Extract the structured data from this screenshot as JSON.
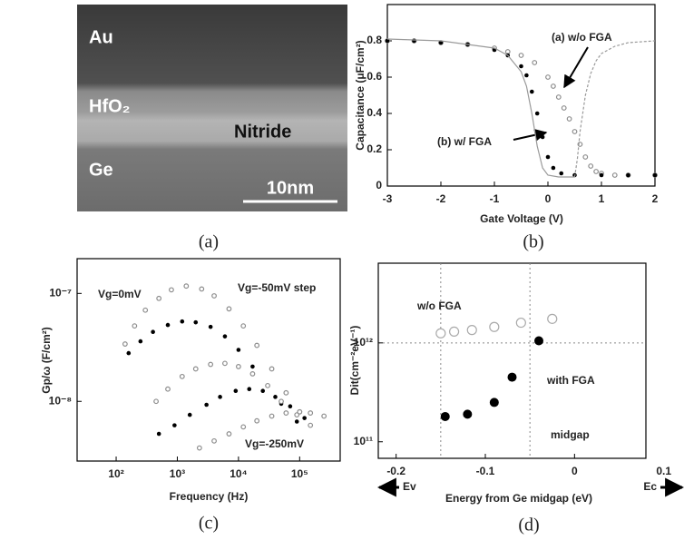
{
  "image": {
    "labels": [
      "Au",
      "HfO₂",
      "Nitride",
      "Ge"
    ],
    "scale_bar": "10nm"
  },
  "captions": [
    "(a)",
    "(b)",
    "(c)",
    "(d)"
  ],
  "chart_data": [
    {
      "type": "line",
      "xlabel": "Gate Voltage (V)",
      "ylabel": "Capacitance  (μF/cm²)",
      "xlim": [
        -3,
        2
      ],
      "xticks": [
        -3,
        -2,
        -1,
        0,
        1,
        2
      ],
      "ylim": [
        0,
        1
      ],
      "yticks": [
        0,
        0.2,
        0.4,
        0.6,
        0.8
      ],
      "annotations": [
        "(a) w/o FGA",
        "(b) w/ FGA"
      ],
      "series": [
        {
          "color": "#8c8c8c",
          "marker": "open",
          "x": [
            -3,
            -2.5,
            -2,
            -1.5,
            -1,
            -0.75,
            -0.5,
            -0.25,
            0,
            0.1,
            0.2,
            0.3,
            0.4,
            0.5,
            0.6,
            0.7,
            0.8,
            0.9,
            1,
            1.25,
            1.5,
            2
          ],
          "values": [
            0.8,
            0.8,
            0.79,
            0.78,
            0.76,
            0.74,
            0.72,
            0.68,
            0.6,
            0.55,
            0.49,
            0.43,
            0.37,
            0.3,
            0.23,
            0.16,
            0.11,
            0.08,
            0.07,
            0.06,
            0.06,
            0.06
          ]
        },
        {
          "color": "#000000",
          "marker": "dot",
          "x": [
            -3,
            -2.5,
            -2,
            -1.5,
            -1,
            -0.75,
            -0.5,
            -0.4,
            -0.3,
            -0.2,
            -0.1,
            0,
            0.1,
            0.25,
            0.5,
            1,
            1.5,
            2
          ],
          "values": [
            0.8,
            0.8,
            0.79,
            0.78,
            0.75,
            0.72,
            0.66,
            0.61,
            0.52,
            0.4,
            0.27,
            0.16,
            0.1,
            0.07,
            0.06,
            0.06,
            0.06,
            0.06
          ]
        },
        {
          "color": "#9a9a9a",
          "marker": "none",
          "x": [
            -3,
            -2,
            -1,
            -0.75,
            -0.5,
            -0.4,
            -0.3,
            -0.2,
            -0.1,
            0,
            0.2,
            0.5
          ],
          "values": [
            0.81,
            0.8,
            0.76,
            0.72,
            0.63,
            0.55,
            0.4,
            0.22,
            0.1,
            0.06,
            0.05,
            0.05
          ]
        },
        {
          "color": "#9a9a9a",
          "marker": "none",
          "line_style": "dashed",
          "x": [
            0.5,
            0.55,
            0.6,
            0.7,
            0.8,
            0.9,
            1,
            1.25,
            1.5,
            2
          ],
          "values": [
            0.05,
            0.15,
            0.3,
            0.5,
            0.62,
            0.69,
            0.73,
            0.77,
            0.79,
            0.8
          ]
        }
      ]
    },
    {
      "type": "line",
      "xlabel": "Frequency (Hz)",
      "ylabel": "Gp/ω (F/cm²)",
      "xscale": "log",
      "yscale": "log",
      "xlim": [
        23,
        460000
      ],
      "xticks": [
        {
          "value": 100,
          "label": "10²"
        },
        {
          "value": 1000,
          "label": "10³"
        },
        {
          "value": 10000,
          "label": "10⁴"
        },
        {
          "value": 100000,
          "label": "10⁵"
        }
      ],
      "ylim": [
        2.8e-09,
        2.1e-07
      ],
      "yticks": [
        {
          "value": 1e-08,
          "label": "10⁻⁸"
        },
        {
          "value": 1e-07,
          "label": "10⁻⁷"
        }
      ],
      "annotations": [
        "Vg=0mV",
        "Vg=-50mV step",
        "Vg=-250mV"
      ],
      "series": [
        {
          "color": "#8c8c8c",
          "marker": "open",
          "x": [
            140,
            200,
            300,
            500,
            800,
            1400,
            2500,
            4000,
            7000,
            12000,
            20000,
            35000,
            60000,
            100000
          ],
          "values": [
            3.4e-08,
            5e-08,
            7e-08,
            9e-08,
            1.08e-07,
            1.17e-07,
            1.1e-07,
            9.5e-08,
            7.2e-08,
            5e-08,
            3.3e-08,
            2e-08,
            1.2e-08,
            8e-09
          ]
        },
        {
          "color": "#000000",
          "marker": "dot",
          "x": [
            160,
            250,
            400,
            700,
            1200,
            2000,
            3500,
            6000,
            10000,
            17000,
            30000,
            50000,
            90000
          ],
          "values": [
            2.8e-08,
            3.6e-08,
            4.4e-08,
            5.1e-08,
            5.5e-08,
            5.4e-08,
            4.9e-08,
            4e-08,
            3e-08,
            2.1e-08,
            1.4e-08,
            9.5e-09,
            6.5e-09
          ]
        },
        {
          "color": "#8c8c8c",
          "marker": "open",
          "x": [
            450,
            700,
            1200,
            2000,
            3500,
            6000,
            10000,
            17000,
            30000,
            50000,
            90000,
            150000
          ],
          "values": [
            1e-08,
            1.3e-08,
            1.7e-08,
            2e-08,
            2.2e-08,
            2.25e-08,
            2.1e-08,
            1.8e-08,
            1.4e-08,
            1e-08,
            7.5e-09,
            6e-09
          ]
        },
        {
          "color": "#000000",
          "marker": "dot",
          "x": [
            500,
            900,
            1600,
            3000,
            5000,
            9000,
            15000,
            25000,
            40000,
            70000,
            120000
          ],
          "values": [
            5e-09,
            6e-09,
            7.5e-09,
            9.3e-09,
            1.1e-08,
            1.25e-08,
            1.3e-08,
            1.25e-08,
            1.1e-08,
            9e-09,
            7e-09
          ]
        },
        {
          "color": "#8c8c8c",
          "marker": "open",
          "x": [
            2300,
            4000,
            7000,
            12000,
            20000,
            35000,
            60000,
            100000,
            150000,
            250000
          ],
          "values": [
            3.7e-09,
            4.3e-09,
            5e-09,
            5.8e-09,
            6.6e-09,
            7.3e-09,
            7.8e-09,
            8e-09,
            7.8e-09,
            7.3e-09
          ]
        }
      ]
    },
    {
      "type": "scatter",
      "xlabel": "Energy from Ge midgap (eV)",
      "ylabel": "Dit(cm⁻²eV⁻¹)",
      "yscale": "log",
      "xlim": [
        -0.22,
        0.08
      ],
      "xticks": [
        -0.2,
        -0.1,
        0,
        0.1
      ],
      "ylim": [
        68000000000.0,
        6400000000000.0
      ],
      "yticks": [
        {
          "value": 100000000000,
          "label": "10¹¹"
        },
        {
          "value": 1000000000000,
          "label": "10¹²"
        }
      ],
      "vlines": [
        -0.15,
        -0.05
      ],
      "hlines": [
        1000000000000
      ],
      "annotations": [
        "w/o FGA",
        "with FGA",
        "midgap",
        "Ev",
        "Ec"
      ],
      "series": [
        {
          "color": "#aaaaaa",
          "marker": "open",
          "x": [
            -0.15,
            -0.135,
            -0.115,
            -0.09,
            -0.06,
            -0.025
          ],
          "values": [
            1250000000000,
            1300000000000,
            1350000000000,
            1450000000000,
            1600000000000,
            1750000000000
          ]
        },
        {
          "color": "#000000",
          "marker": "dot",
          "x": [
            -0.145,
            -0.12,
            -0.09,
            -0.07,
            -0.04
          ],
          "values": [
            180000000000,
            190000000000,
            250000000000,
            450000000000,
            1050000000000
          ]
        }
      ]
    }
  ]
}
